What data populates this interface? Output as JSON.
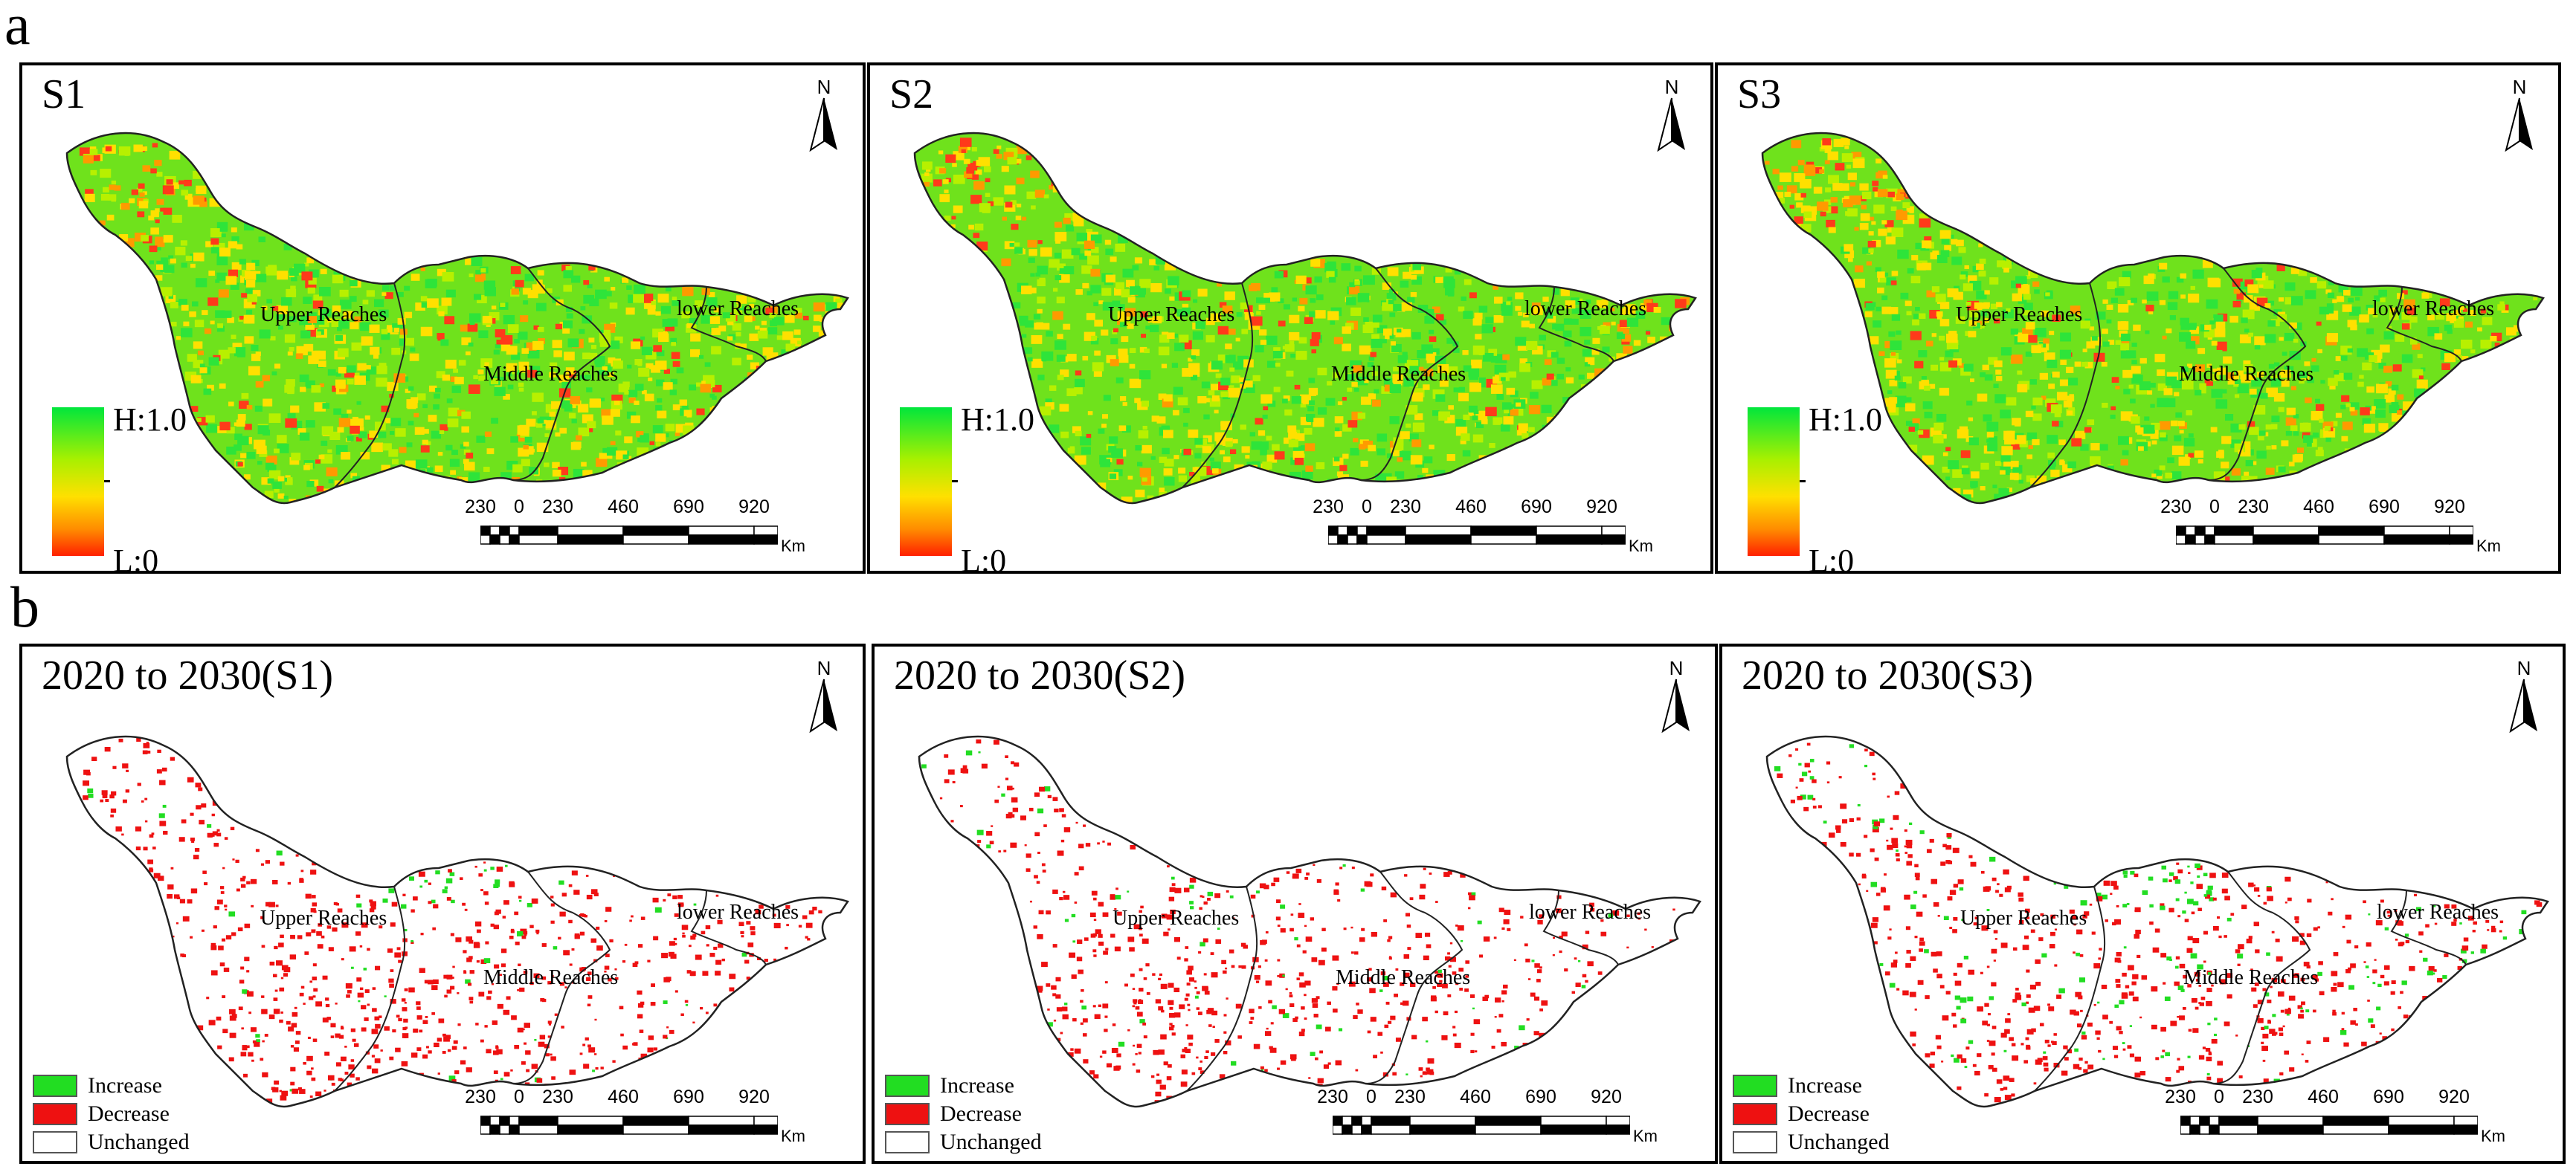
{
  "figure": {
    "section_a": "a",
    "section_b": "b",
    "row_a": [
      {
        "title": "S1",
        "variant": 0
      },
      {
        "title": "S2",
        "variant": 1
      },
      {
        "title": "S3",
        "variant": 2
      }
    ],
    "row_b": [
      {
        "title": "2020 to 2030(S1)",
        "variant": 0
      },
      {
        "title": "2020 to 2030(S2)",
        "variant": 1
      },
      {
        "title": "2020 to 2030(S3)",
        "variant": 2
      }
    ],
    "north_label": "N",
    "regions": {
      "upper": "Upper Reaches",
      "middle": "Middle Reaches",
      "lower": "lower Reaches"
    },
    "gradient_legend": {
      "high": "H:1.0",
      "low": "L:0",
      "colors": [
        "#00e63c",
        "#a8f000",
        "#ffe000",
        "#ff8c00",
        "#ff2000"
      ]
    },
    "change_legend": [
      {
        "label": "Increase",
        "color": "#22dd22"
      },
      {
        "label": "Decrease",
        "color": "#ee1111"
      },
      {
        "label": "Unchanged",
        "color": "#ffffff"
      }
    ],
    "scale_bar": {
      "ticks": [
        "230",
        "0",
        "230",
        "460",
        "690",
        "920"
      ],
      "unit": "Km"
    }
  }
}
